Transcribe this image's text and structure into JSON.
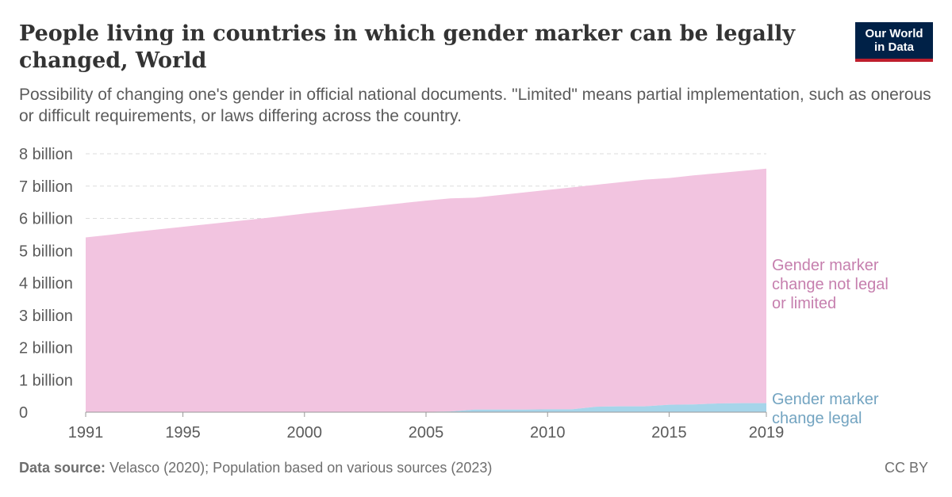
{
  "header": {
    "title": "People living in countries in which gender marker can be legally changed, World",
    "subtitle": "Possibility of changing one's gender in official national documents. \"Limited\" means partial implementation, such as onerous or difficult requirements, or laws differing across the country.",
    "logo_text": "Our World in Data"
  },
  "footer": {
    "source_label": "Data source:",
    "source_text": "Velasco (2020); Population based on various sources (2023)",
    "license": "CC BY"
  },
  "colors": {
    "not_legal": "#f2c4e0",
    "not_legal_label": "#c67fae",
    "legal": "#a6d5ea",
    "legal_label": "#73a4c1",
    "grid": "#dddddd",
    "axis_text": "#5b5b5b"
  },
  "chart_data": {
    "type": "area",
    "stacked": true,
    "x": [
      1991,
      1992,
      1993,
      1994,
      1995,
      1996,
      1997,
      1998,
      1999,
      2000,
      2001,
      2002,
      2003,
      2004,
      2005,
      2006,
      2007,
      2008,
      2009,
      2010,
      2011,
      2012,
      2013,
      2014,
      2015,
      2016,
      2017,
      2018,
      2019
    ],
    "xticks": [
      "1991",
      "1995",
      "2000",
      "2005",
      "2010",
      "2015",
      "2019"
    ],
    "yticks": [
      "0",
      "1 billion",
      "2 billion",
      "3 billion",
      "4 billion",
      "5 billion",
      "6 billion",
      "7 billion",
      "8 billion"
    ],
    "ylim": [
      0,
      8
    ],
    "yunit": "billion",
    "grid": true,
    "series": [
      {
        "name": "Gender marker change legal",
        "values": [
          0,
          0,
          0,
          0,
          0,
          0,
          0,
          0,
          0,
          0,
          0,
          0,
          0,
          0,
          0.01,
          0.02,
          0.08,
          0.08,
          0.08,
          0.09,
          0.09,
          0.17,
          0.18,
          0.18,
          0.23,
          0.24,
          0.27,
          0.28,
          0.28
        ]
      },
      {
        "name": "Gender marker change not legal or limited",
        "values": [
          5.41,
          5.49,
          5.58,
          5.66,
          5.74,
          5.82,
          5.9,
          5.98,
          6.06,
          6.15,
          6.23,
          6.31,
          6.39,
          6.47,
          6.54,
          6.6,
          6.56,
          6.64,
          6.72,
          6.79,
          6.87,
          6.87,
          6.94,
          7.02,
          7.02,
          7.09,
          7.13,
          7.19,
          7.26
        ]
      }
    ]
  }
}
